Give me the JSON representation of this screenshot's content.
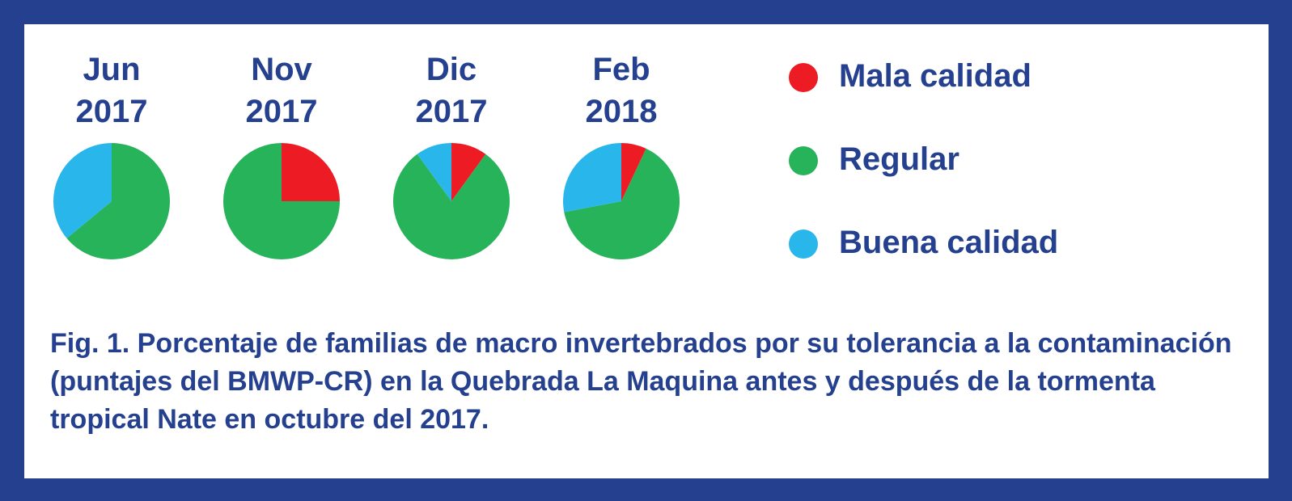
{
  "colors": {
    "border": "#24408e",
    "text": "#24408e",
    "mala": "#ed1c24",
    "regular": "#27b35a",
    "buena": "#29b6ea"
  },
  "legend": [
    {
      "label": "Mala calidad",
      "color": "#ed1c24"
    },
    {
      "label": "Regular",
      "color": "#27b35a"
    },
    {
      "label": "Buena calidad",
      "color": "#29b6ea"
    }
  ],
  "caption": "Fig. 1. Porcentaje de familias de macro invertebrados por su tolerancia a la contaminación (puntajes del BMWP-CR) en la Quebrada La Maquina antes y después de la tormenta tropical Nate en octubre del 2017.",
  "chart_data": {
    "type": "pie",
    "series_names": [
      "Mala calidad",
      "Regular",
      "Buena calidad"
    ],
    "pies": [
      {
        "title_line1": "Jun",
        "title_line2": "2017",
        "values": [
          0,
          64,
          36
        ]
      },
      {
        "title_line1": "Nov",
        "title_line2": "2017",
        "values": [
          25,
          75,
          0
        ]
      },
      {
        "title_line1": "Dic",
        "title_line2": "2017",
        "values": [
          10,
          80,
          10
        ]
      },
      {
        "title_line1": "Feb",
        "title_line2": "2018",
        "values": [
          7,
          65,
          28
        ]
      }
    ]
  }
}
